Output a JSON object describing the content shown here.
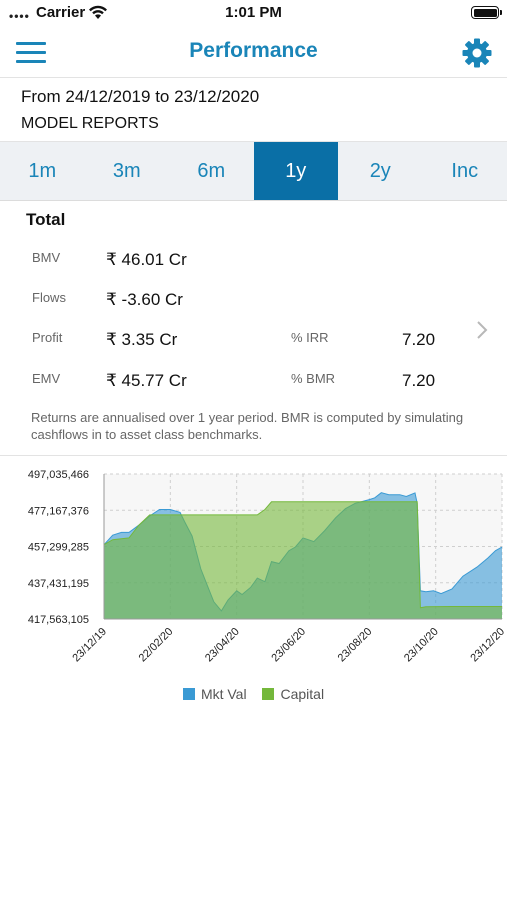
{
  "status_bar": {
    "signal": "••••",
    "carrier": "Carrier",
    "time": "1:01 PM"
  },
  "nav": {
    "title": "Performance",
    "menu_icon": "hamburger-menu-icon",
    "settings_icon": "gear-icon"
  },
  "report": {
    "range": "From 24/12/2019 to 23/12/2020",
    "model": "MODEL REPORTS"
  },
  "tabs": [
    {
      "label": "1m",
      "active": false
    },
    {
      "label": "3m",
      "active": false
    },
    {
      "label": "6m",
      "active": false
    },
    {
      "label": "1y",
      "active": true
    },
    {
      "label": "2y",
      "active": false
    },
    {
      "label": "Inc",
      "active": false
    }
  ],
  "summary": {
    "heading": "Total",
    "bmv": {
      "label": "BMV",
      "value": "₹ 46.01 Cr"
    },
    "flows": {
      "label": "Flows",
      "value": "₹ -3.60 Cr"
    },
    "profit": {
      "label": "Profit",
      "value": "₹ 3.35 Cr"
    },
    "emv": {
      "label": "EMV",
      "value": "₹ 45.77 Cr"
    },
    "irr": {
      "label": "% IRR",
      "value": "7.20"
    },
    "bmr": {
      "label": "% BMR",
      "value": "7.20"
    },
    "note": "Returns are annualised over 1 year period. BMR is computed by simulating cashflows in to asset class benchmarks."
  },
  "colors": {
    "accent": "#1a85b8",
    "active_tab": "#0a6fa6",
    "mkt_val": "#3a9ad4",
    "capital": "#74b83b"
  },
  "chart_data": {
    "type": "area",
    "xlabel": "",
    "ylabel": "",
    "x_ticks": [
      "23/12/19",
      "22/02/20",
      "23/04/20",
      "23/06/20",
      "23/08/20",
      "23/10/20",
      "23/12/20"
    ],
    "y_ticks": [
      "497,035,466",
      "477,167,376",
      "457,299,285",
      "437,431,195",
      "417,563,105"
    ],
    "ylim": [
      417563105,
      497035466
    ],
    "grid": true,
    "legend_position": "bottom",
    "series": [
      {
        "name": "Mkt Val",
        "x": [
          "2019-12-23",
          "2019-12-31",
          "2020-01-08",
          "2020-01-15",
          "2020-01-24",
          "2020-02-03",
          "2020-02-12",
          "2020-02-22",
          "2020-03-02",
          "2020-03-06",
          "2020-03-13",
          "2020-03-21",
          "2020-03-27",
          "2020-04-02",
          "2020-04-09",
          "2020-04-15",
          "2020-04-23",
          "2020-04-28",
          "2020-05-06",
          "2020-05-12",
          "2020-05-19",
          "2020-05-25",
          "2020-06-01",
          "2020-06-10",
          "2020-06-16",
          "2020-06-23",
          "2020-07-03",
          "2020-07-13",
          "2020-07-23",
          "2020-08-01",
          "2020-08-10",
          "2020-08-23",
          "2020-08-28",
          "2020-09-03",
          "2020-09-10",
          "2020-09-20",
          "2020-09-26",
          "2020-10-04",
          "2020-10-06",
          "2020-10-09",
          "2020-10-14",
          "2020-10-21",
          "2020-10-28",
          "2020-11-07",
          "2020-11-17",
          "2020-11-30",
          "2020-12-10",
          "2020-12-17",
          "2020-12-23"
        ],
        "values": [
          458300000,
          463500000,
          465000000,
          465000000,
          469000000,
          474000000,
          477600000,
          477600000,
          476000000,
          471000000,
          463000000,
          445000000,
          436000000,
          427000000,
          422000000,
          428000000,
          433000000,
          431000000,
          435000000,
          440000000,
          438000000,
          449000000,
          448000000,
          455000000,
          457000000,
          462000000,
          460000000,
          466000000,
          473000000,
          478000000,
          481000000,
          483000000,
          484000000,
          486800000,
          485700000,
          485700000,
          484700000,
          486700000,
          481000000,
          433000000,
          432500000,
          433000000,
          431500000,
          434000000,
          441000000,
          446000000,
          451000000,
          455000000,
          457000000
        ]
      },
      {
        "name": "Capital",
        "x": [
          "2019-12-23",
          "2019-12-31",
          "2020-01-15",
          "2020-01-24",
          "2020-02-03",
          "2020-02-12",
          "2020-04-30",
          "2020-05-12",
          "2020-05-19",
          "2020-05-25",
          "2020-09-10",
          "2020-09-20",
          "2020-09-26",
          "2020-10-04",
          "2020-10-06",
          "2020-10-09",
          "2020-10-14",
          "2020-11-07",
          "2020-12-23"
        ],
        "values": [
          458300000,
          461000000,
          462000000,
          469000000,
          474600000,
          474600000,
          474600000,
          474600000,
          477600000,
          481800000,
          481800000,
          481800000,
          481800000,
          481800000,
          481800000,
          423700000,
          424300000,
          424400000,
          424400000
        ]
      }
    ]
  }
}
